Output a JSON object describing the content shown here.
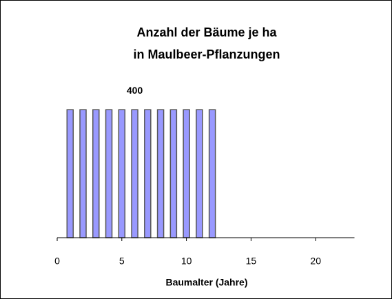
{
  "chart_data": {
    "type": "bar",
    "title": "Anzahl der Bäume je ha",
    "subtitle": "in Maulbeer-Pflanzungen",
    "xlabel": "Baumalter (Jahre)",
    "x": [
      1,
      2,
      3,
      4,
      5,
      6,
      7,
      8,
      9,
      10,
      11,
      12
    ],
    "values": [
      400,
      400,
      400,
      400,
      400,
      400,
      400,
      400,
      400,
      400,
      400,
      400
    ],
    "value_labels": [
      null,
      null,
      null,
      null,
      null,
      "400",
      null,
      null,
      null,
      null,
      null,
      null
    ],
    "color": "#9999ff",
    "xlim": [
      0,
      23
    ],
    "xticks": [
      0,
      5,
      10,
      15,
      20
    ],
    "ylim": [
      0,
      450
    ],
    "grid": false
  }
}
